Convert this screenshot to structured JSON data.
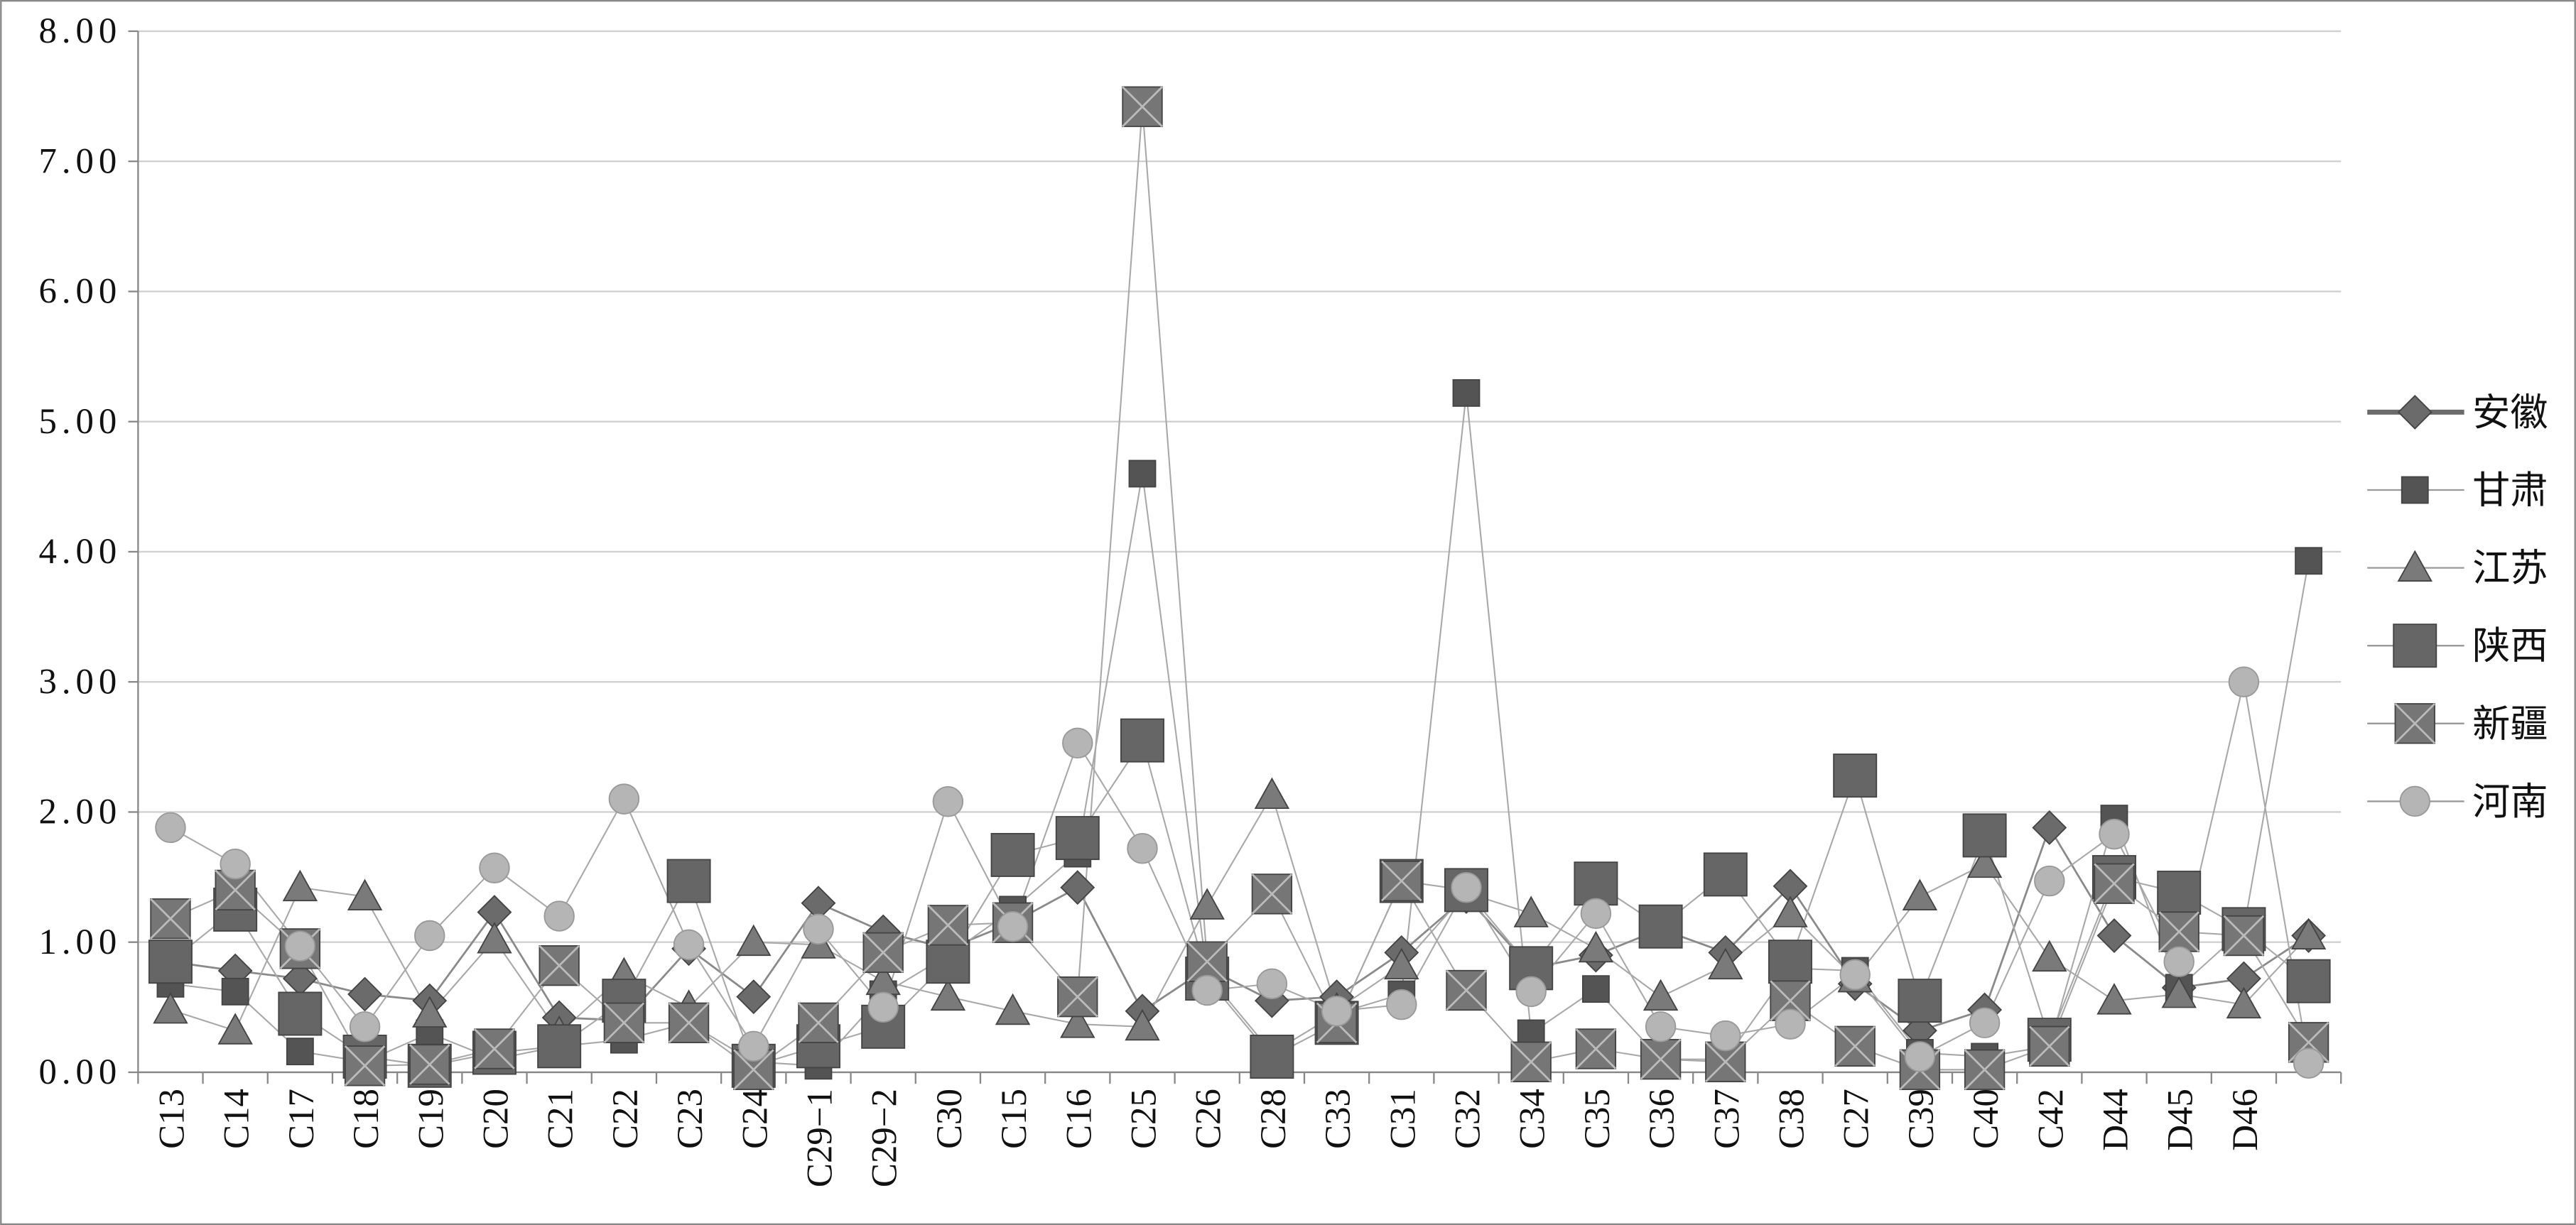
{
  "chart_data": {
    "type": "line",
    "categories": [
      "C13",
      "C14",
      "C17",
      "C18",
      "C19",
      "C20",
      "C21",
      "C22",
      "C23",
      "C24",
      "C29−1",
      "C29−2",
      "C30",
      "C15",
      "C16",
      "C25",
      "C26",
      "C28",
      "C33",
      "C31",
      "C32",
      "C34",
      "C35",
      "C36",
      "C37",
      "C38",
      "C27",
      "C39",
      "C40",
      "C42",
      "D44",
      "D45",
      "D46",
      null
    ],
    "series": [
      {
        "name": "安徽",
        "color": "#6b6b6b",
        "marker": "diamond",
        "values": [
          0.85,
          0.78,
          0.72,
          0.6,
          0.55,
          1.23,
          0.42,
          0.4,
          0.95,
          0.58,
          1.3,
          1.08,
          0.95,
          1.15,
          1.42,
          0.47,
          0.8,
          0.55,
          0.58,
          0.92,
          1.35,
          0.8,
          0.9,
          1.1,
          0.92,
          1.43,
          0.68,
          0.32,
          0.48,
          1.88,
          1.05,
          0.65,
          0.72,
          1.05
        ]
      },
      {
        "name": "甘肃",
        "color": "#545454",
        "marker": "square",
        "values": [
          0.68,
          0.62,
          0.16,
          0.08,
          0.3,
          0.1,
          0.2,
          0.25,
          0.38,
          0.08,
          0.05,
          0.6,
          0.9,
          1.25,
          1.68,
          4.6,
          0.75,
          0.15,
          0.45,
          0.6,
          5.22,
          0.3,
          0.64,
          0.1,
          0.1,
          0.8,
          0.78,
          0.15,
          0.12,
          0.2,
          1.95,
          0.65,
          1.1,
          3.93
        ]
      },
      {
        "name": "江苏",
        "color": "#7a7a7a",
        "marker": "triangle",
        "values": [
          0.48,
          0.32,
          1.42,
          1.35,
          0.45,
          1.02,
          0.3,
          0.75,
          0.5,
          1.0,
          0.98,
          0.7,
          0.58,
          0.47,
          0.37,
          0.35,
          1.28,
          2.13,
          0.48,
          0.82,
          1.38,
          1.22,
          0.95,
          0.58,
          0.82,
          1.22,
          0.72,
          1.35,
          1.6,
          0.88,
          0.55,
          0.6,
          0.52,
          1.05
        ]
      },
      {
        "name": "陕西",
        "color": "#666666",
        "marker": "bigsquare",
        "values": [
          0.85,
          1.25,
          0.45,
          0.12,
          0.05,
          0.15,
          0.2,
          0.55,
          1.47,
          0.05,
          0.2,
          0.35,
          0.85,
          1.67,
          1.8,
          2.55,
          0.72,
          0.12,
          0.38,
          1.47,
          1.4,
          0.8,
          1.45,
          1.12,
          1.52,
          0.85,
          2.28,
          0.55,
          1.82,
          0.25,
          1.5,
          1.38,
          1.1,
          0.7
        ]
      },
      {
        "name": "新疆",
        "color": "#767676",
        "marker": "xsquare",
        "values": [
          1.18,
          1.4,
          0.95,
          0.05,
          0.06,
          0.18,
          0.82,
          0.38,
          0.38,
          0.02,
          0.38,
          0.92,
          1.13,
          1.15,
          0.58,
          7.42,
          0.85,
          1.37,
          0.38,
          1.47,
          0.63,
          0.08,
          0.18,
          0.1,
          0.08,
          0.55,
          0.2,
          0.02,
          0.02,
          0.2,
          1.45,
          1.08,
          1.05,
          0.23
        ]
      },
      {
        "name": "河南",
        "color": "#b5b5b5",
        "marker": "circle",
        "values": [
          1.88,
          1.6,
          0.97,
          0.35,
          1.05,
          1.57,
          1.2,
          2.1,
          0.98,
          0.2,
          1.1,
          0.5,
          2.08,
          1.12,
          2.53,
          1.72,
          0.63,
          0.68,
          0.47,
          0.52,
          1.42,
          0.62,
          1.22,
          0.35,
          0.28,
          0.37,
          0.75,
          0.12,
          0.38,
          1.47,
          1.83,
          0.85,
          3.0,
          0.07
        ]
      }
    ],
    "ylim": [
      0,
      8
    ],
    "yticks": [
      {
        "value": 0,
        "label": "0.00"
      },
      {
        "value": 1,
        "label": "1.00"
      },
      {
        "value": 2,
        "label": "2.00"
      },
      {
        "value": 3,
        "label": "3.00"
      },
      {
        "value": 4,
        "label": "4.00"
      },
      {
        "value": 5,
        "label": "5.00"
      },
      {
        "value": 6,
        "label": "6.00"
      },
      {
        "value": 7,
        "label": "7.00"
      },
      {
        "value": 8,
        "label": "8.00"
      }
    ],
    "grid": true,
    "legend": "right"
  }
}
